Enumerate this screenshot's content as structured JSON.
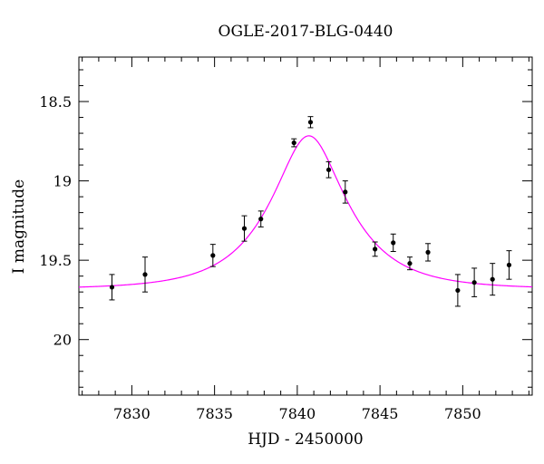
{
  "chart_data": {
    "type": "scatter",
    "title": "OGLE-2017-BLG-0440",
    "xlabel": "HJD - 2450000",
    "ylabel": "I magnitude",
    "xlim": [
      7826.8,
      7854.2
    ],
    "ylim": [
      20.35,
      18.22
    ],
    "y_inverted": true,
    "x_ticks": [
      7830,
      7835,
      7840,
      7845,
      7850
    ],
    "x_tick_labels": [
      "7830",
      "7835",
      "7840",
      "7845",
      "7850"
    ],
    "y_ticks": [
      18.5,
      19,
      19.5,
      20
    ],
    "y_tick_labels": [
      "18.5",
      "19",
      "19.5",
      "20"
    ],
    "x_minor_step": 1,
    "y_minor_step": 0.1,
    "grid": false,
    "series": [
      {
        "kind": "points_with_errorbars",
        "color": "#000000",
        "points": [
          {
            "x": 7828.8,
            "y": 19.67,
            "err": 0.08
          },
          {
            "x": 7830.8,
            "y": 19.59,
            "err": 0.11
          },
          {
            "x": 7834.9,
            "y": 19.47,
            "err": 0.07
          },
          {
            "x": 7836.8,
            "y": 19.3,
            "err": 0.08
          },
          {
            "x": 7837.8,
            "y": 19.24,
            "err": 0.05
          },
          {
            "x": 7839.8,
            "y": 18.76,
            "err": 0.025
          },
          {
            "x": 7840.8,
            "y": 18.63,
            "err": 0.035
          },
          {
            "x": 7841.9,
            "y": 18.93,
            "err": 0.05
          },
          {
            "x": 7842.9,
            "y": 19.07,
            "err": 0.07
          },
          {
            "x": 7844.7,
            "y": 19.43,
            "err": 0.045
          },
          {
            "x": 7845.8,
            "y": 19.39,
            "err": 0.055
          },
          {
            "x": 7846.8,
            "y": 19.52,
            "err": 0.04
          },
          {
            "x": 7847.9,
            "y": 19.45,
            "err": 0.055
          },
          {
            "x": 7849.7,
            "y": 19.69,
            "err": 0.1
          },
          {
            "x": 7850.7,
            "y": 19.64,
            "err": 0.09
          },
          {
            "x": 7851.8,
            "y": 19.62,
            "err": 0.1
          },
          {
            "x": 7852.8,
            "y": 19.53,
            "err": 0.09
          }
        ]
      },
      {
        "kind": "model_curve",
        "color": "#ff00ff",
        "model": "single-lens microlensing (PSPL)",
        "t0": 7840.7,
        "u0": 0.44,
        "tE": 4.2,
        "baseline_mag": 19.682,
        "blend_fraction": 1.0
      }
    ]
  }
}
